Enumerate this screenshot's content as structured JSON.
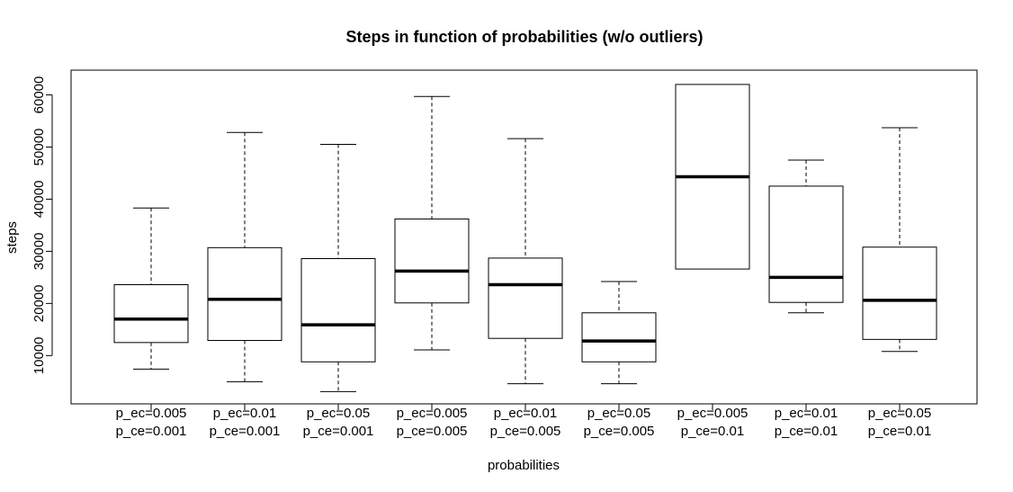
{
  "chart_data": {
    "type": "boxplot",
    "title": "Steps in function of probabilities (w/o outliers)",
    "xlabel": "probabilities",
    "ylabel": "steps",
    "ylim": [
      1000,
      65000
    ],
    "yticks": [
      10000,
      20000,
      30000,
      40000,
      50000,
      60000
    ],
    "grid": false,
    "legend": "none",
    "categories": [
      {
        "line1": "p_ec=0.005",
        "line2": "p_ce=0.001"
      },
      {
        "line1": "p_ec=0.01",
        "line2": "p_ce=0.001"
      },
      {
        "line1": "p_ec=0.05",
        "line2": "p_ce=0.001"
      },
      {
        "line1": "p_ec=0.005",
        "line2": "p_ce=0.005"
      },
      {
        "line1": "p_ec=0.01",
        "line2": "p_ce=0.005"
      },
      {
        "line1": "p_ec=0.05",
        "line2": "p_ce=0.005"
      },
      {
        "line1": "p_ec=0.005",
        "line2": "p_ce=0.01"
      },
      {
        "line1": "p_ec=0.01",
        "line2": "p_ce=0.01"
      },
      {
        "line1": "p_ec=0.05",
        "line2": "p_ce=0.01"
      }
    ],
    "boxes": [
      {
        "min": 7400,
        "q1": 12500,
        "median": 17000,
        "q3": 23600,
        "max": 38300
      },
      {
        "min": 5000,
        "q1": 12900,
        "median": 20800,
        "q3": 30700,
        "max": 52800
      },
      {
        "min": 3100,
        "q1": 8800,
        "median": 15900,
        "q3": 28600,
        "max": 50500
      },
      {
        "min": 11100,
        "q1": 20100,
        "median": 26200,
        "q3": 36200,
        "max": 59700
      },
      {
        "min": 4600,
        "q1": 13300,
        "median": 23600,
        "q3": 28700,
        "max": 51600
      },
      {
        "min": 4600,
        "q1": 8800,
        "median": 12800,
        "q3": 18200,
        "max": 24200
      },
      {
        "min": 26600,
        "q1": 26600,
        "median": 44300,
        "q3": 62000,
        "max": 62000
      },
      {
        "min": 18200,
        "q1": 20200,
        "median": 25000,
        "q3": 42500,
        "max": 47500
      },
      {
        "min": 10800,
        "q1": 13100,
        "median": 20600,
        "q3": 30800,
        "max": 53700
      }
    ]
  }
}
